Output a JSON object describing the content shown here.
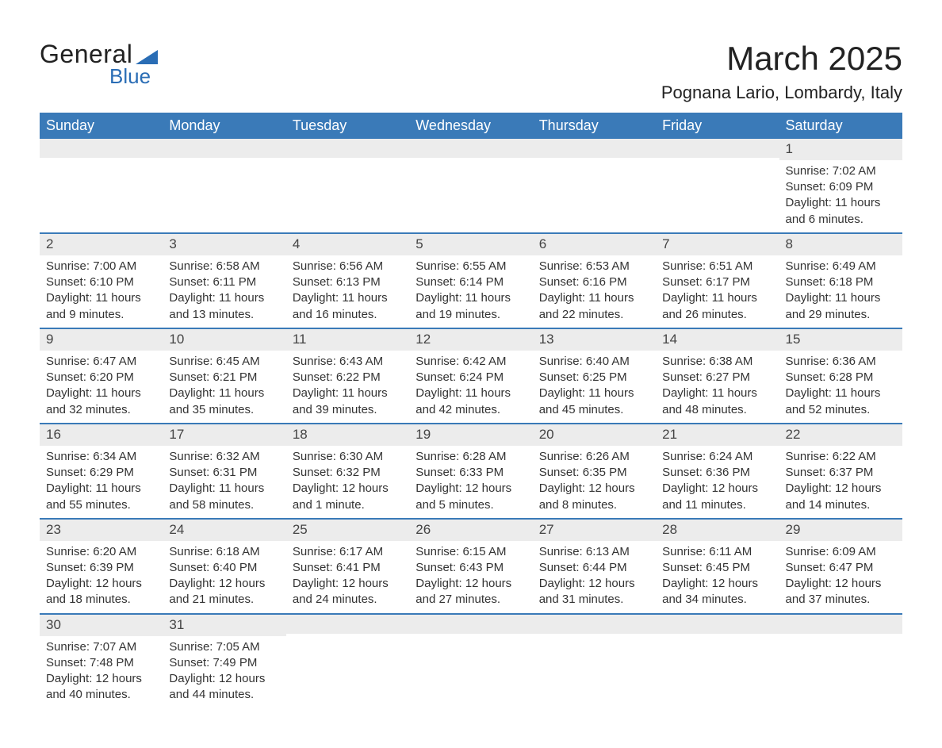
{
  "brand": {
    "word1": "General",
    "word2": "Blue",
    "accent_color": "#2a6db5"
  },
  "title": "March 2025",
  "location": "Pognana Lario, Lombardy, Italy",
  "header_bg": "#3a7ab8",
  "band_bg": "#ececec",
  "text_color": "#333333",
  "weekdays": [
    "Sunday",
    "Monday",
    "Tuesday",
    "Wednesday",
    "Thursday",
    "Friday",
    "Saturday"
  ],
  "labels": {
    "sunrise": "Sunrise:",
    "sunset": "Sunset:",
    "daylight": "Daylight:"
  },
  "weeks": [
    [
      null,
      null,
      null,
      null,
      null,
      null,
      {
        "n": "1",
        "sr": "7:02 AM",
        "ss": "6:09 PM",
        "dl": "11 hours and 6 minutes."
      }
    ],
    [
      {
        "n": "2",
        "sr": "7:00 AM",
        "ss": "6:10 PM",
        "dl": "11 hours and 9 minutes."
      },
      {
        "n": "3",
        "sr": "6:58 AM",
        "ss": "6:11 PM",
        "dl": "11 hours and 13 minutes."
      },
      {
        "n": "4",
        "sr": "6:56 AM",
        "ss": "6:13 PM",
        "dl": "11 hours and 16 minutes."
      },
      {
        "n": "5",
        "sr": "6:55 AM",
        "ss": "6:14 PM",
        "dl": "11 hours and 19 minutes."
      },
      {
        "n": "6",
        "sr": "6:53 AM",
        "ss": "6:16 PM",
        "dl": "11 hours and 22 minutes."
      },
      {
        "n": "7",
        "sr": "6:51 AM",
        "ss": "6:17 PM",
        "dl": "11 hours and 26 minutes."
      },
      {
        "n": "8",
        "sr": "6:49 AM",
        "ss": "6:18 PM",
        "dl": "11 hours and 29 minutes."
      }
    ],
    [
      {
        "n": "9",
        "sr": "6:47 AM",
        "ss": "6:20 PM",
        "dl": "11 hours and 32 minutes."
      },
      {
        "n": "10",
        "sr": "6:45 AM",
        "ss": "6:21 PM",
        "dl": "11 hours and 35 minutes."
      },
      {
        "n": "11",
        "sr": "6:43 AM",
        "ss": "6:22 PM",
        "dl": "11 hours and 39 minutes."
      },
      {
        "n": "12",
        "sr": "6:42 AM",
        "ss": "6:24 PM",
        "dl": "11 hours and 42 minutes."
      },
      {
        "n": "13",
        "sr": "6:40 AM",
        "ss": "6:25 PM",
        "dl": "11 hours and 45 minutes."
      },
      {
        "n": "14",
        "sr": "6:38 AM",
        "ss": "6:27 PM",
        "dl": "11 hours and 48 minutes."
      },
      {
        "n": "15",
        "sr": "6:36 AM",
        "ss": "6:28 PM",
        "dl": "11 hours and 52 minutes."
      }
    ],
    [
      {
        "n": "16",
        "sr": "6:34 AM",
        "ss": "6:29 PM",
        "dl": "11 hours and 55 minutes."
      },
      {
        "n": "17",
        "sr": "6:32 AM",
        "ss": "6:31 PM",
        "dl": "11 hours and 58 minutes."
      },
      {
        "n": "18",
        "sr": "6:30 AM",
        "ss": "6:32 PM",
        "dl": "12 hours and 1 minute."
      },
      {
        "n": "19",
        "sr": "6:28 AM",
        "ss": "6:33 PM",
        "dl": "12 hours and 5 minutes."
      },
      {
        "n": "20",
        "sr": "6:26 AM",
        "ss": "6:35 PM",
        "dl": "12 hours and 8 minutes."
      },
      {
        "n": "21",
        "sr": "6:24 AM",
        "ss": "6:36 PM",
        "dl": "12 hours and 11 minutes."
      },
      {
        "n": "22",
        "sr": "6:22 AM",
        "ss": "6:37 PM",
        "dl": "12 hours and 14 minutes."
      }
    ],
    [
      {
        "n": "23",
        "sr": "6:20 AM",
        "ss": "6:39 PM",
        "dl": "12 hours and 18 minutes."
      },
      {
        "n": "24",
        "sr": "6:18 AM",
        "ss": "6:40 PM",
        "dl": "12 hours and 21 minutes."
      },
      {
        "n": "25",
        "sr": "6:17 AM",
        "ss": "6:41 PM",
        "dl": "12 hours and 24 minutes."
      },
      {
        "n": "26",
        "sr": "6:15 AM",
        "ss": "6:43 PM",
        "dl": "12 hours and 27 minutes."
      },
      {
        "n": "27",
        "sr": "6:13 AM",
        "ss": "6:44 PM",
        "dl": "12 hours and 31 minutes."
      },
      {
        "n": "28",
        "sr": "6:11 AM",
        "ss": "6:45 PM",
        "dl": "12 hours and 34 minutes."
      },
      {
        "n": "29",
        "sr": "6:09 AM",
        "ss": "6:47 PM",
        "dl": "12 hours and 37 minutes."
      }
    ],
    [
      {
        "n": "30",
        "sr": "7:07 AM",
        "ss": "7:48 PM",
        "dl": "12 hours and 40 minutes."
      },
      {
        "n": "31",
        "sr": "7:05 AM",
        "ss": "7:49 PM",
        "dl": "12 hours and 44 minutes."
      },
      null,
      null,
      null,
      null,
      null
    ]
  ]
}
